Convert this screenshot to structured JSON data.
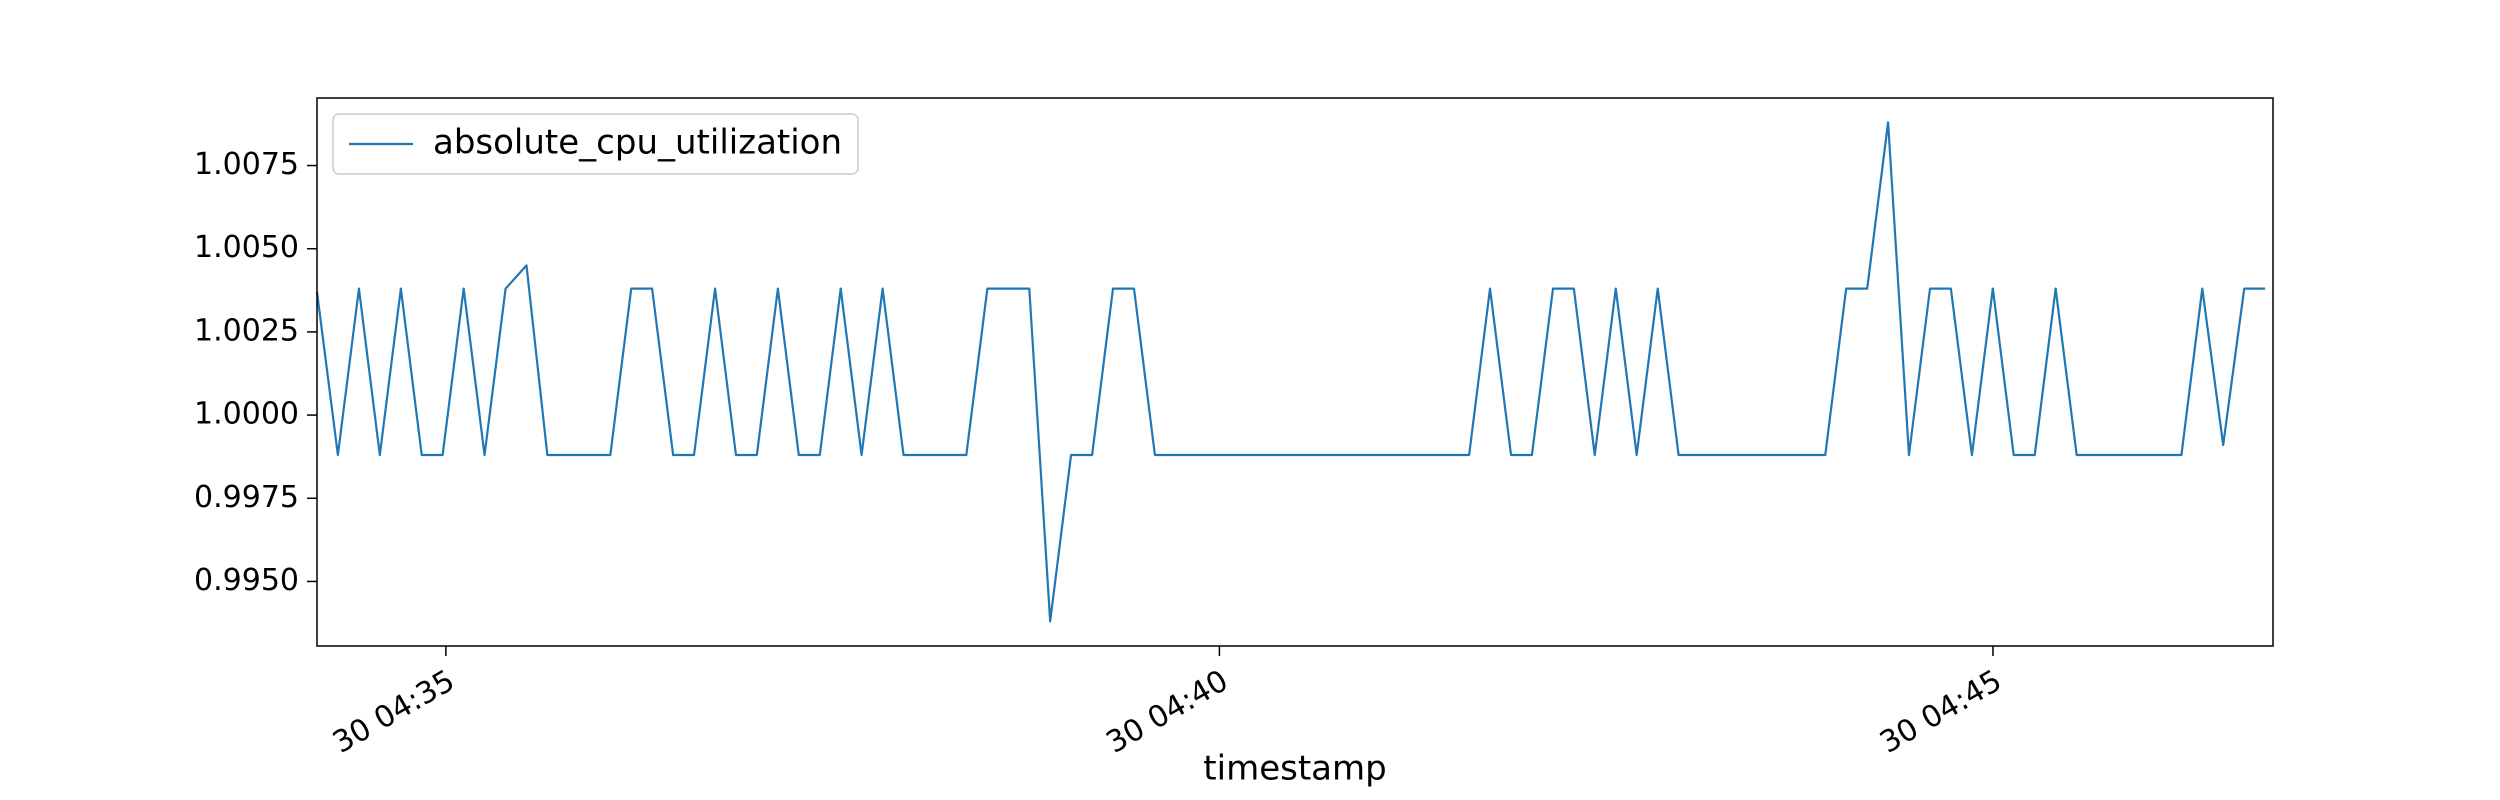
{
  "chart_data": {
    "type": "line",
    "x": [
      34.167,
      34.302,
      34.438,
      34.573,
      34.709,
      34.844,
      34.979,
      35.115,
      35.25,
      35.386,
      35.521,
      35.656,
      35.792,
      35.927,
      36.063,
      36.198,
      36.333,
      36.469,
      36.604,
      36.74,
      36.875,
      37.01,
      37.146,
      37.281,
      37.417,
      37.552,
      37.687,
      37.823,
      37.958,
      38.094,
      38.229,
      38.364,
      38.5,
      38.635,
      38.771,
      38.906,
      39.041,
      39.177,
      39.312,
      39.448,
      39.583,
      39.718,
      39.854,
      39.989,
      40.125,
      40.26,
      40.395,
      40.531,
      40.666,
      40.802,
      40.937,
      41.072,
      41.208,
      41.343,
      41.479,
      41.614,
      41.749,
      41.885,
      42.02,
      42.156,
      42.291,
      42.426,
      42.562,
      42.697,
      42.833,
      42.968,
      43.103,
      43.239,
      43.374,
      43.51,
      43.645,
      43.78,
      43.916,
      44.051,
      44.187,
      44.322,
      44.457,
      44.593,
      44.728,
      44.864,
      44.999,
      45.134,
      45.27,
      45.405,
      45.541,
      45.676,
      45.811,
      45.947,
      46.082,
      46.218,
      46.353,
      46.488,
      46.624,
      46.759
    ],
    "series": [
      {
        "name": "absolute_cpu_utilization",
        "color": "#1f77b4",
        "values": [
          1.0037,
          0.9988,
          1.0038,
          0.9988,
          1.0038,
          0.9988,
          0.9988,
          1.0038,
          0.9988,
          1.0038,
          1.0045,
          0.9988,
          0.9988,
          0.9988,
          0.9988,
          1.0038,
          1.0038,
          0.9988,
          0.9988,
          1.0038,
          0.9988,
          0.9988,
          1.0038,
          0.9988,
          0.9988,
          1.0038,
          0.9988,
          1.0038,
          0.9988,
          0.9988,
          0.9988,
          0.9988,
          1.0038,
          1.0038,
          1.0038,
          0.9938,
          0.9988,
          0.9988,
          1.0038,
          1.0038,
          0.9988,
          0.9988,
          0.9988,
          0.9988,
          0.9988,
          0.9988,
          0.9988,
          0.9988,
          0.9988,
          0.9988,
          0.9988,
          0.9988,
          0.9988,
          0.9988,
          0.9988,
          0.9988,
          1.0038,
          0.9988,
          0.9988,
          1.0038,
          1.0038,
          0.9988,
          1.0038,
          0.9988,
          1.0038,
          0.9988,
          0.9988,
          0.9988,
          0.9988,
          0.9988,
          0.9988,
          0.9988,
          0.9988,
          1.0038,
          1.0038,
          1.0088,
          0.9988,
          1.0038,
          1.0038,
          0.9988,
          1.0038,
          0.9988,
          0.9988,
          1.0038,
          0.9988,
          0.9988,
          0.9988,
          0.9988,
          0.9988,
          0.9988,
          1.0038,
          0.9991,
          1.0038,
          1.0038
        ]
      }
    ],
    "xlabel": "timestamp",
    "xlim": [
      34.167,
      46.81
    ],
    "xticks": [
      {
        "value": 35,
        "label": "30 04:35"
      },
      {
        "value": 40,
        "label": "30 04:40"
      },
      {
        "value": 45,
        "label": "30 04:45"
      }
    ],
    "ylim": [
      0.99306,
      1.00953
    ],
    "yticks": [
      {
        "value": 0.995,
        "label": "0.9950"
      },
      0.9975,
      {
        "value": 1.0,
        "label": "1.0000"
      },
      1.0025,
      {
        "value": 1.005,
        "label": "1.0050"
      },
      1.0075
    ],
    "legend": "upper left"
  }
}
